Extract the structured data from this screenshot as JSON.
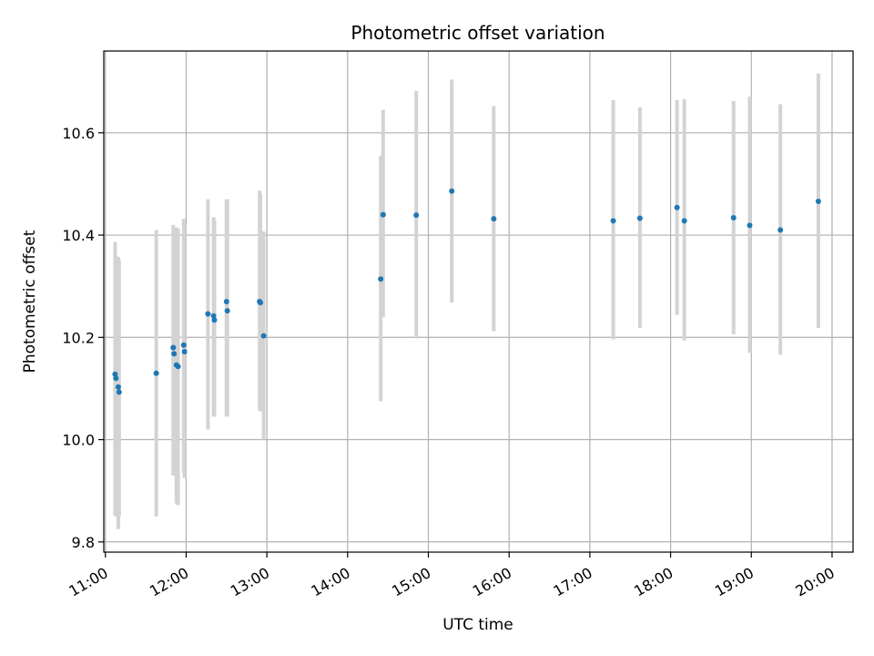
{
  "chart_data": {
    "type": "scatter",
    "title": "Photometric offset variation",
    "xlabel": "UTC time",
    "ylabel": "Photometric offset",
    "xlim": [
      10.98,
      20.26
    ],
    "ylim": [
      9.78,
      10.76
    ],
    "grid": true,
    "x_ticks": [
      {
        "value": 11,
        "label": "11:00"
      },
      {
        "value": 12,
        "label": "12:00"
      },
      {
        "value": 13,
        "label": "13:00"
      },
      {
        "value": 14,
        "label": "14:00"
      },
      {
        "value": 15,
        "label": "15:00"
      },
      {
        "value": 16,
        "label": "16:00"
      },
      {
        "value": 17,
        "label": "17:00"
      },
      {
        "value": 18,
        "label": "18:00"
      },
      {
        "value": 19,
        "label": "19:00"
      },
      {
        "value": 20,
        "label": "20:00"
      }
    ],
    "y_ticks": [
      {
        "value": 9.8,
        "label": "9.8"
      },
      {
        "value": 10.0,
        "label": "10.0"
      },
      {
        "value": 10.2,
        "label": "10.2"
      },
      {
        "value": 10.4,
        "label": "10.4"
      },
      {
        "value": 10.6,
        "label": "10.6"
      }
    ],
    "colors": {
      "point": "#1f77b4",
      "errorbar": "#d3d3d3",
      "grid": "#b0b0b0"
    },
    "points": [
      {
        "x": 11.12,
        "y": 10.128,
        "lo": 9.852,
        "hi": 10.387
      },
      {
        "x": 11.13,
        "y": 10.12,
        "lo": 9.85,
        "hi": 10.36
      },
      {
        "x": 11.16,
        "y": 10.103,
        "lo": 9.825,
        "hi": 10.357
      },
      {
        "x": 11.17,
        "y": 10.093,
        "lo": 9.85,
        "hi": 10.35
      },
      {
        "x": 11.63,
        "y": 10.13,
        "lo": 9.85,
        "hi": 10.41
      },
      {
        "x": 11.84,
        "y": 10.18,
        "lo": 9.93,
        "hi": 10.42
      },
      {
        "x": 11.85,
        "y": 10.168,
        "lo": 9.93,
        "hi": 10.41
      },
      {
        "x": 11.88,
        "y": 10.146,
        "lo": 9.875,
        "hi": 10.415
      },
      {
        "x": 11.9,
        "y": 10.143,
        "lo": 9.872,
        "hi": 10.413
      },
      {
        "x": 11.97,
        "y": 10.185,
        "lo": 9.935,
        "hi": 10.432
      },
      {
        "x": 11.98,
        "y": 10.172,
        "lo": 9.925,
        "hi": 10.42
      },
      {
        "x": 12.27,
        "y": 10.246,
        "lo": 10.02,
        "hi": 10.47
      },
      {
        "x": 12.34,
        "y": 10.242,
        "lo": 10.045,
        "hi": 10.435
      },
      {
        "x": 12.35,
        "y": 10.234,
        "lo": 10.045,
        "hi": 10.43
      },
      {
        "x": 12.5,
        "y": 10.27,
        "lo": 10.045,
        "hi": 10.47
      },
      {
        "x": 12.51,
        "y": 10.252,
        "lo": 10.045,
        "hi": 10.47
      },
      {
        "x": 12.91,
        "y": 10.27,
        "lo": 10.058,
        "hi": 10.487
      },
      {
        "x": 12.92,
        "y": 10.268,
        "lo": 10.055,
        "hi": 10.48
      },
      {
        "x": 12.96,
        "y": 10.203,
        "lo": 10.0,
        "hi": 10.407
      },
      {
        "x": 14.41,
        "y": 10.314,
        "lo": 10.075,
        "hi": 10.555
      },
      {
        "x": 14.44,
        "y": 10.44,
        "lo": 10.24,
        "hi": 10.645
      },
      {
        "x": 14.85,
        "y": 10.439,
        "lo": 10.198,
        "hi": 10.682
      },
      {
        "x": 15.29,
        "y": 10.486,
        "lo": 10.268,
        "hi": 10.704
      },
      {
        "x": 15.81,
        "y": 10.432,
        "lo": 10.212,
        "hi": 10.652
      },
      {
        "x": 17.29,
        "y": 10.428,
        "lo": 10.196,
        "hi": 10.664
      },
      {
        "x": 17.62,
        "y": 10.433,
        "lo": 10.218,
        "hi": 10.65
      },
      {
        "x": 18.08,
        "y": 10.454,
        "lo": 10.244,
        "hi": 10.664
      },
      {
        "x": 18.17,
        "y": 10.428,
        "lo": 10.194,
        "hi": 10.666
      },
      {
        "x": 18.78,
        "y": 10.434,
        "lo": 10.206,
        "hi": 10.662
      },
      {
        "x": 18.98,
        "y": 10.419,
        "lo": 10.17,
        "hi": 10.671
      },
      {
        "x": 19.36,
        "y": 10.41,
        "lo": 10.166,
        "hi": 10.656
      },
      {
        "x": 19.83,
        "y": 10.466,
        "lo": 10.218,
        "hi": 10.716
      }
    ]
  }
}
